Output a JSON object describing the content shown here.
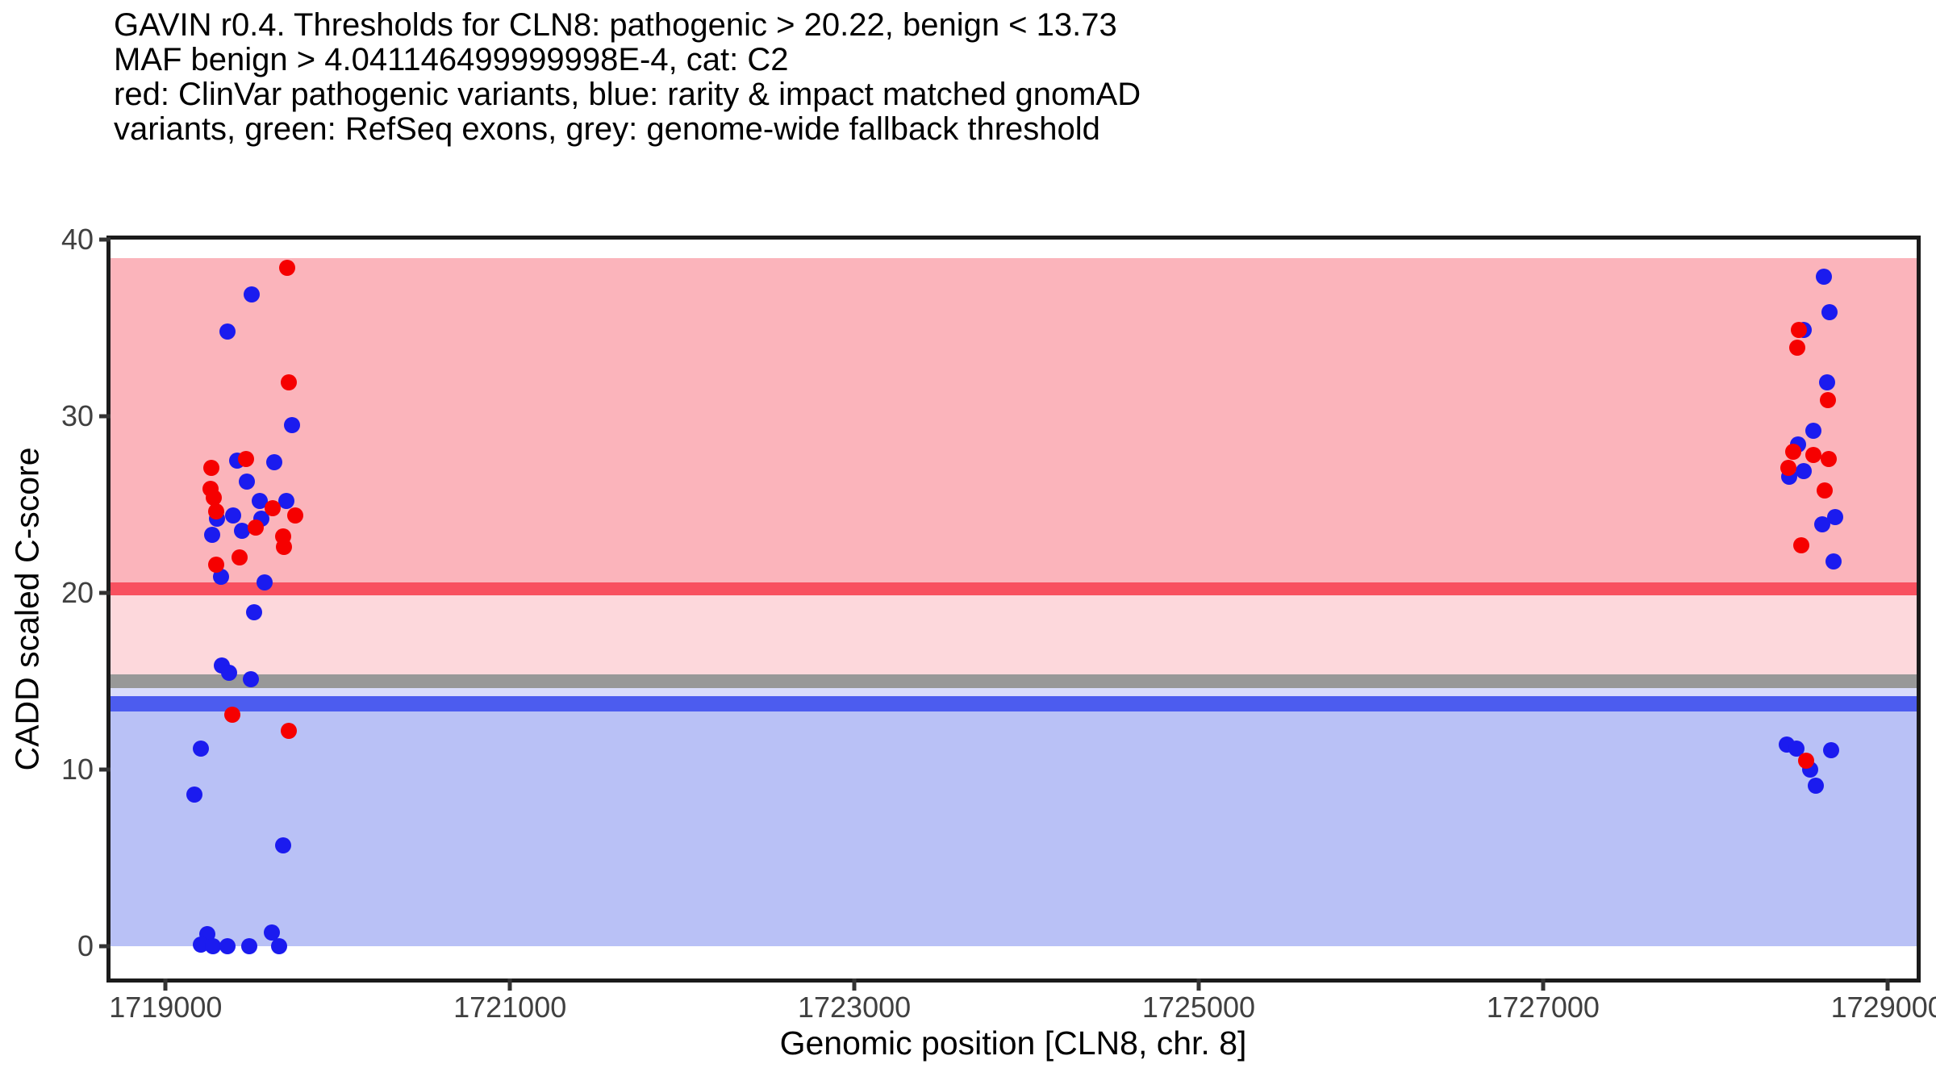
{
  "title": {
    "lines": [
      "GAVIN r0.4. Thresholds for CLN8: pathogenic > 20.22, benign < 13.73",
      "MAF benign > 4.041146499999998E-4, cat: C2",
      "red: ClinVar pathogenic variants, blue: rarity & impact matched gnomAD",
      "variants, green: RefSeq exons, grey: genome-wide fallback threshold"
    ]
  },
  "chart_data": {
    "type": "scatter",
    "gene": "CLN8",
    "xlabel": "Genomic position [CLN8, chr. 8]",
    "ylabel": "CADD scaled C-score",
    "xlim": [
      1718680,
      1729170
    ],
    "ylim": [
      -1.82,
      40
    ],
    "grid": false,
    "x_ticks": [
      {
        "label": "1719000",
        "value": 1719000
      },
      {
        "label": "1721000",
        "value": 1721000
      },
      {
        "label": "1723000",
        "value": 1723000
      },
      {
        "label": "1725000",
        "value": 1725000
      },
      {
        "label": "1727000",
        "value": 1727000
      },
      {
        "label": "1729000",
        "value": 1729000
      }
    ],
    "y_ticks": [
      {
        "label": "40",
        "value": 40
      },
      {
        "label": "30",
        "value": 30
      },
      {
        "label": "20",
        "value": 20
      },
      {
        "label": "10",
        "value": 10
      },
      {
        "label": "0",
        "value": 0
      }
    ],
    "thresholds": {
      "pathogenic": 20.22,
      "benign": 13.73,
      "genome_wide_fallback": 15,
      "maf_benign": "4.041146499999998E-4",
      "category": "C2"
    },
    "bands": [
      {
        "name": "pathogenic-region",
        "from": 20.59,
        "to": 38.94,
        "color": "#FBB4BB"
      },
      {
        "name": "pathogenic-threshold-band",
        "from": 19.86,
        "to": 20.59,
        "color": "#F8505F"
      },
      {
        "name": "uncertain-upper-region",
        "from": 15.38,
        "to": 19.86,
        "color": "#FDD8DC"
      },
      {
        "name": "genome-wide-fallback-band",
        "from": 14.61,
        "to": 15.38,
        "color": "#989898"
      },
      {
        "name": "uncertain-lower-region",
        "from": 14.15,
        "to": 14.61,
        "color": "#D9DCFB"
      },
      {
        "name": "benign-threshold-band",
        "from": 13.28,
        "to": 14.15,
        "color": "#4C5CEF"
      },
      {
        "name": "benign-region",
        "from": 0.0,
        "to": 13.28,
        "color": "#B9C1F6"
      }
    ],
    "series": [
      {
        "name": "rarity & impact matched gnomAD variants",
        "color": "#1B1BEF",
        "points": [
          [
            1719501,
            36.9
          ],
          [
            1719361,
            34.8
          ],
          [
            1719736,
            29.5
          ],
          [
            1719417,
            27.5
          ],
          [
            1719633,
            27.4
          ],
          [
            1719473,
            26.3
          ],
          [
            1719548,
            25.2
          ],
          [
            1719703,
            25.2
          ],
          [
            1719394,
            24.4
          ],
          [
            1719300,
            24.2
          ],
          [
            1719558,
            24.2
          ],
          [
            1719445,
            23.5
          ],
          [
            1719272,
            23.3
          ],
          [
            1719323,
            20.9
          ],
          [
            1719576,
            20.6
          ],
          [
            1719515,
            18.9
          ],
          [
            1719328,
            15.9
          ],
          [
            1719370,
            15.5
          ],
          [
            1719497,
            15.1
          ],
          [
            1719206,
            11.2
          ],
          [
            1719169,
            8.6
          ],
          [
            1719684,
            5.7
          ],
          [
            1719244,
            0.7
          ],
          [
            1719206,
            0.1
          ],
          [
            1719277,
            0.0
          ],
          [
            1719361,
            0.0
          ],
          [
            1719487,
            0.0
          ],
          [
            1719619,
            0.8
          ],
          [
            1719661,
            0.0
          ],
          [
            1728630,
            37.9
          ],
          [
            1728662,
            35.9
          ],
          [
            1728513,
            34.9
          ],
          [
            1728649,
            31.9
          ],
          [
            1728569,
            29.2
          ],
          [
            1728480,
            28.4
          ],
          [
            1728513,
            26.9
          ],
          [
            1728429,
            26.6
          ],
          [
            1728696,
            24.3
          ],
          [
            1728621,
            23.9
          ],
          [
            1728687,
            21.8
          ],
          [
            1728415,
            11.4
          ],
          [
            1728471,
            11.2
          ],
          [
            1728672,
            11.1
          ],
          [
            1728551,
            10.0
          ],
          [
            1728583,
            9.1
          ]
        ]
      },
      {
        "name": "ClinVar pathogenic variants",
        "color": "#F60000",
        "points": [
          [
            1719707,
            38.4
          ],
          [
            1719717,
            31.9
          ],
          [
            1719469,
            27.6
          ],
          [
            1719267,
            27.1
          ],
          [
            1719262,
            25.9
          ],
          [
            1719281,
            25.4
          ],
          [
            1719623,
            24.8
          ],
          [
            1719295,
            24.6
          ],
          [
            1719754,
            24.4
          ],
          [
            1719525,
            23.7
          ],
          [
            1719684,
            23.2
          ],
          [
            1719689,
            22.6
          ],
          [
            1719431,
            22.0
          ],
          [
            1719295,
            21.6
          ],
          [
            1719389,
            13.1
          ],
          [
            1719717,
            12.2
          ],
          [
            1728485,
            34.9
          ],
          [
            1728476,
            33.9
          ],
          [
            1728653,
            30.9
          ],
          [
            1728452,
            28.0
          ],
          [
            1728569,
            27.8
          ],
          [
            1728658,
            27.6
          ],
          [
            1728424,
            27.1
          ],
          [
            1728635,
            25.8
          ],
          [
            1728499,
            22.7
          ],
          [
            1728527,
            10.5
          ]
        ]
      }
    ]
  }
}
